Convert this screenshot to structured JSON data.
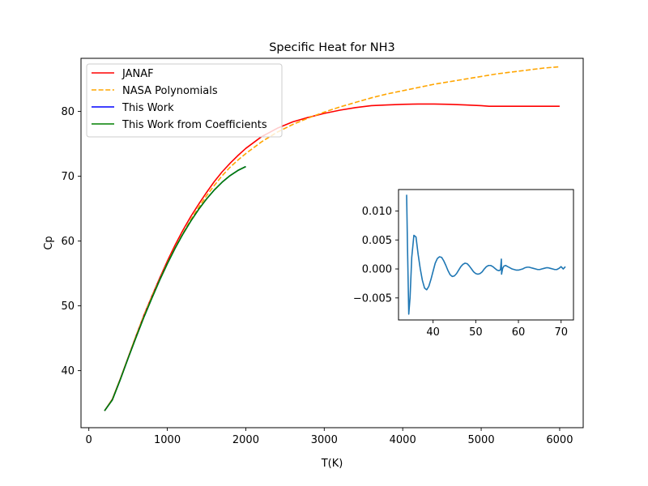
{
  "chart_data": [
    {
      "type": "line",
      "title": "Specific Heat for NH3",
      "xlabel": "T(K)",
      "ylabel": "Cp",
      "xlim": [
        -100,
        6300
      ],
      "ylim": [
        31.2,
        88.2
      ],
      "xticks": [
        0,
        1000,
        2000,
        3000,
        4000,
        5000,
        6000
      ],
      "yticks": [
        40,
        50,
        60,
        70,
        80
      ],
      "grid": false,
      "legend_position": "top-left",
      "series": [
        {
          "name": "JANAF",
          "color": "#ff0000",
          "style": "solid",
          "x": [
            200,
            300,
            400,
            500,
            600,
            700,
            800,
            900,
            1000,
            1100,
            1200,
            1300,
            1400,
            1500,
            1600,
            1700,
            1800,
            1900,
            2000,
            2200,
            2400,
            2600,
            2800,
            3000,
            3200,
            3400,
            3600,
            3800,
            4000,
            4200,
            4400,
            4600,
            4800,
            5000,
            5100,
            5200,
            5400,
            5600,
            5800,
            6000
          ],
          "y": [
            33.8,
            35.6,
            38.7,
            42.0,
            45.3,
            48.5,
            51.4,
            54.2,
            56.9,
            59.4,
            61.7,
            63.8,
            65.7,
            67.5,
            69.2,
            70.7,
            72.0,
            73.2,
            74.3,
            76.1,
            77.4,
            78.4,
            79.1,
            79.7,
            80.2,
            80.6,
            80.9,
            81.0,
            81.1,
            81.15,
            81.15,
            81.1,
            81.0,
            80.9,
            80.8,
            80.8,
            80.8,
            80.8,
            80.8,
            80.8
          ]
        },
        {
          "name": "NASA Polynomials",
          "color": "#ffa500",
          "style": "dashed",
          "x": [
            200,
            300,
            400,
            500,
            600,
            700,
            800,
            900,
            1000,
            1100,
            1200,
            1300,
            1400,
            1500,
            1600,
            1700,
            1800,
            1900,
            2000,
            2200,
            2400,
            2600,
            2800,
            3000,
            3200,
            3400,
            3600,
            3800,
            4000,
            4200,
            4400,
            4600,
            4800,
            5000,
            5200,
            5400,
            5600,
            5800,
            6000
          ],
          "y": [
            33.8,
            35.6,
            38.7,
            42.0,
            45.3,
            48.4,
            51.3,
            54.0,
            56.6,
            59.0,
            61.2,
            63.3,
            65.2,
            67.0,
            68.6,
            70.1,
            71.4,
            72.5,
            73.5,
            75.3,
            76.8,
            78.0,
            79.0,
            79.9,
            80.7,
            81.4,
            82.1,
            82.7,
            83.2,
            83.7,
            84.2,
            84.6,
            85.0,
            85.4,
            85.8,
            86.1,
            86.4,
            86.7,
            86.9
          ]
        },
        {
          "name": "This Work",
          "color": "#0000ff",
          "style": "solid",
          "x": [
            200,
            300,
            400,
            500,
            600,
            700,
            800,
            900,
            1000,
            1100,
            1200,
            1300,
            1400,
            1500,
            1600,
            1700,
            1800,
            1900,
            2000
          ],
          "y": [
            33.8,
            35.5,
            38.6,
            41.9,
            45.1,
            48.2,
            51.1,
            53.9,
            56.5,
            58.9,
            61.1,
            63.1,
            64.9,
            66.5,
            67.9,
            69.1,
            70.1,
            70.9,
            71.5
          ]
        },
        {
          "name": "This Work from Coefficients",
          "color": "#008000",
          "style": "solid",
          "x": [
            200,
            300,
            400,
            500,
            600,
            700,
            800,
            900,
            1000,
            1100,
            1200,
            1300,
            1400,
            1500,
            1600,
            1700,
            1800,
            1900,
            2000
          ],
          "y": [
            33.8,
            35.5,
            38.6,
            41.9,
            45.1,
            48.2,
            51.1,
            53.9,
            56.5,
            58.9,
            61.1,
            63.1,
            64.9,
            66.5,
            67.9,
            69.1,
            70.1,
            70.9,
            71.5
          ]
        }
      ]
    },
    {
      "type": "line",
      "xlim": [
        31.9,
        72.9
      ],
      "ylim": [
        -0.0088,
        0.0137
      ],
      "xticks": [
        40,
        50,
        60,
        70
      ],
      "yticks": [
        -0.005,
        0.0,
        0.005,
        0.01
      ],
      "ytick_labels": [
        "−0.005",
        "0.000",
        "0.005",
        "0.010"
      ],
      "grid": false,
      "series": [
        {
          "color": "#1f77b4",
          "style": "solid",
          "x": [
            33.8,
            34.0,
            34.3,
            34.6,
            35.0,
            35.5,
            36.0,
            36.5,
            37.0,
            37.5,
            38.0,
            38.5,
            39.0,
            39.5,
            40.0,
            40.5,
            41.0,
            41.5,
            42.0,
            42.5,
            43.0,
            43.5,
            44.0,
            44.5,
            45.0,
            45.5,
            46.0,
            46.5,
            47.0,
            47.5,
            48.0,
            48.5,
            49.0,
            49.5,
            50.0,
            50.5,
            51.0,
            51.5,
            52.0,
            52.5,
            53.0,
            53.5,
            54.0,
            54.5,
            55.0,
            55.5,
            55.8,
            56.0,
            56.05,
            56.1,
            56.3,
            56.6,
            57.0,
            57.5,
            58.0,
            58.5,
            59.0,
            59.5,
            60.0,
            60.5,
            61.0,
            61.5,
            62.0,
            62.5,
            63.0,
            63.5,
            64.0,
            64.5,
            65.0,
            65.5,
            66.0,
            66.5,
            67.0,
            67.5,
            68.0,
            68.5,
            69.0,
            69.5,
            70.0,
            70.5,
            71.0
          ],
          "y": [
            0.0128,
            0.004,
            -0.0078,
            -0.005,
            0.002,
            0.0058,
            0.0055,
            0.0025,
            0.0,
            -0.002,
            -0.0033,
            -0.0036,
            -0.003,
            -0.0018,
            -0.0004,
            0.001,
            0.0018,
            0.0021,
            0.002,
            0.0014,
            0.0006,
            -0.0003,
            -0.001,
            -0.0013,
            -0.0012,
            -0.0008,
            -0.0002,
            0.0004,
            0.0008,
            0.001,
            0.0009,
            0.0005,
            0.0,
            -0.0005,
            -0.0008,
            -0.0009,
            -0.0008,
            -0.0005,
            0.0,
            0.0004,
            0.0006,
            0.0006,
            0.0004,
            0.0001,
            -0.0002,
            -0.0003,
            -0.0001,
            0.0017,
            -0.0009,
            -0.0007,
            0.0001,
            0.0005,
            0.0006,
            0.0004,
            0.0002,
            0.0,
            -0.0001,
            -0.0002,
            -0.0002,
            -0.0001,
            0.0,
            0.0002,
            0.0003,
            0.0003,
            0.0002,
            0.0001,
            0.0,
            -0.0001,
            -0.0001,
            0.0,
            0.0001,
            0.0002,
            0.0002,
            0.0001,
            0.0,
            -0.0001,
            -0.0001,
            0.0001,
            0.0004,
            0.0,
            0.0004
          ]
        }
      ]
    }
  ]
}
